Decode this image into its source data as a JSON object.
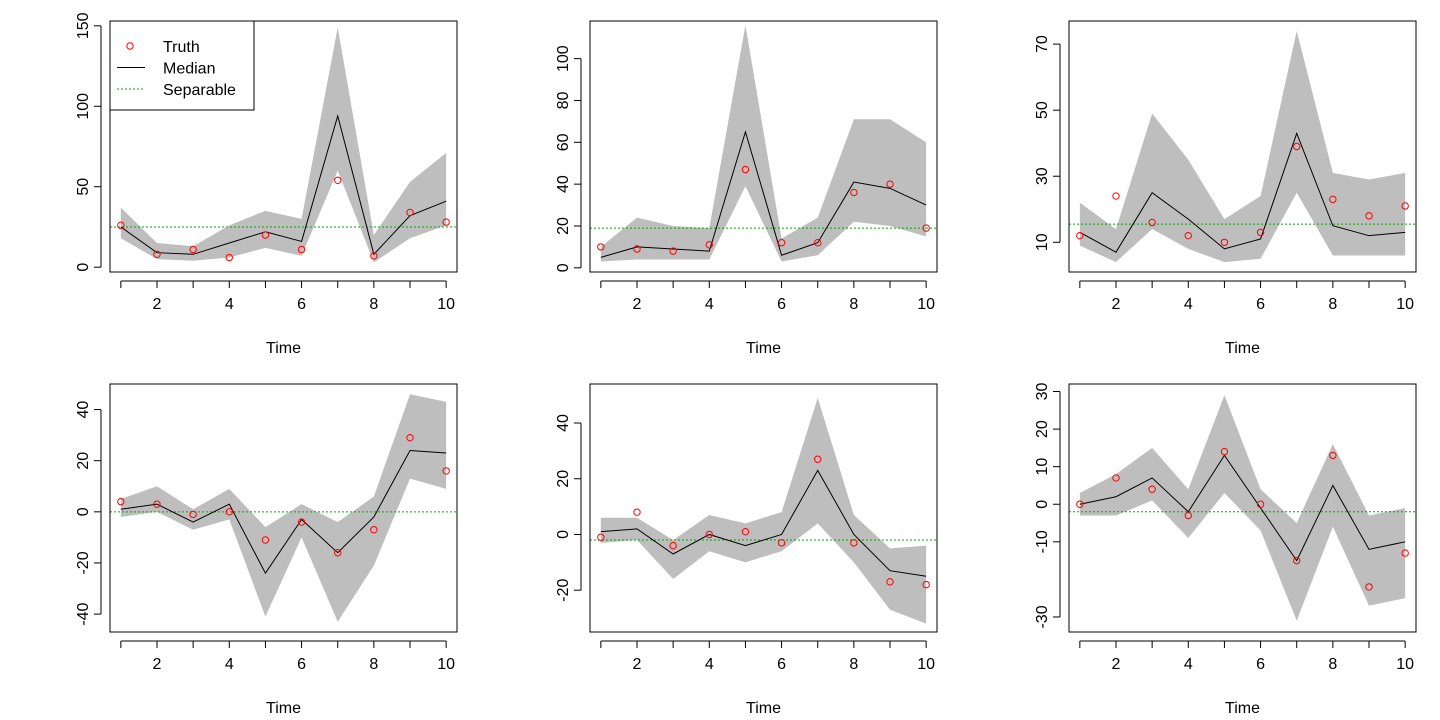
{
  "figure": {
    "layout": "2x3 panel grid",
    "colors": {
      "band": "#bebebe",
      "median": "#000000",
      "truth": "#ff0000",
      "separable": "#00aa00",
      "frame": "#000000"
    },
    "legend": {
      "items": [
        {
          "label": "Truth",
          "symbol": "open-circle",
          "color": "#ff0000"
        },
        {
          "label": "Median",
          "symbol": "solid-line",
          "color": "#000000"
        },
        {
          "label": "Separable",
          "symbol": "dotted-line",
          "color": "#00aa00"
        }
      ],
      "placement": "top-left of first panel"
    }
  },
  "chart_data": [
    {
      "type": "line",
      "xlabel": "Time",
      "ylabel": "",
      "xlim": [
        0.7,
        10.3
      ],
      "ylim": [
        -3,
        153
      ],
      "xticks": [
        2,
        4,
        6,
        8,
        10
      ],
      "yticks": [
        0,
        50,
        100,
        150
      ],
      "x": [
        1,
        2,
        3,
        4,
        5,
        6,
        7,
        8,
        9,
        10
      ],
      "series": [
        {
          "name": "Median",
          "values": [
            25,
            9,
            8,
            15,
            22,
            16,
            94,
            8,
            32,
            41
          ]
        },
        {
          "name": "Truth",
          "values": [
            26,
            8,
            11,
            6,
            20,
            11,
            54,
            7,
            34,
            28
          ]
        }
      ],
      "band": {
        "lower": [
          18,
          5,
          4,
          6,
          12,
          7,
          60,
          3,
          18,
          26
        ],
        "upper": [
          37,
          15,
          13,
          26,
          35,
          30,
          149,
          20,
          53,
          71
        ]
      },
      "separable": 25
    },
    {
      "type": "line",
      "xlabel": "Time",
      "ylabel": "",
      "xlim": [
        0.7,
        10.3
      ],
      "ylim": [
        -2,
        118
      ],
      "xticks": [
        2,
        4,
        6,
        8,
        10
      ],
      "yticks": [
        0,
        20,
        40,
        60,
        80,
        100
      ],
      "x": [
        1,
        2,
        3,
        4,
        5,
        6,
        7,
        8,
        9,
        10
      ],
      "series": [
        {
          "name": "Median",
          "values": [
            5,
            10,
            9,
            8,
            65,
            6,
            12,
            41,
            38,
            30
          ]
        },
        {
          "name": "Truth",
          "values": [
            10,
            9,
            8,
            11,
            47,
            12,
            12,
            36,
            40,
            19
          ]
        }
      ],
      "band": {
        "lower": [
          3,
          4,
          4,
          4,
          39,
          3,
          6,
          22,
          20,
          15
        ],
        "upper": [
          10,
          24,
          20,
          19,
          116,
          14,
          24,
          71,
          71,
          60
        ]
      },
      "separable": 19
    },
    {
      "type": "line",
      "xlabel": "Time",
      "ylabel": "",
      "xlim": [
        0.7,
        10.3
      ],
      "ylim": [
        1,
        77
      ],
      "xticks": [
        2,
        4,
        6,
        8,
        10
      ],
      "yticks": [
        10,
        30,
        50,
        70
      ],
      "x": [
        1,
        2,
        3,
        4,
        5,
        6,
        7,
        8,
        9,
        10
      ],
      "series": [
        {
          "name": "Median",
          "values": [
            13,
            7,
            25,
            17,
            8,
            11,
            43,
            15,
            12,
            13
          ]
        },
        {
          "name": "Truth",
          "values": [
            12,
            24,
            16,
            12,
            10,
            13,
            39,
            23,
            18,
            21
          ]
        }
      ],
      "band": {
        "lower": [
          9,
          4,
          14,
          8,
          4,
          5,
          25,
          6,
          6,
          6
        ],
        "upper": [
          22,
          14,
          49,
          35,
          17,
          24,
          74,
          31,
          29,
          31
        ]
      },
      "separable": 15.5
    },
    {
      "type": "line",
      "xlabel": "Time",
      "ylabel": "",
      "xlim": [
        0.7,
        10.3
      ],
      "ylim": [
        -47,
        50
      ],
      "xticks": [
        2,
        4,
        6,
        8,
        10
      ],
      "yticks": [
        -40,
        -20,
        0,
        20,
        40
      ],
      "x": [
        1,
        2,
        3,
        4,
        5,
        6,
        7,
        8,
        9,
        10
      ],
      "series": [
        {
          "name": "Median",
          "values": [
            1,
            3,
            -4,
            3,
            -24,
            -3,
            -16,
            -2,
            24,
            23
          ]
        },
        {
          "name": "Truth",
          "values": [
            4,
            3,
            -1,
            0,
            -11,
            -4,
            -16,
            -7,
            29,
            16
          ]
        }
      ],
      "band": {
        "lower": [
          -2,
          0,
          -7,
          -3,
          -41,
          -10,
          -43,
          -21,
          13,
          9
        ],
        "upper": [
          5,
          10,
          1,
          9,
          -6,
          3,
          -4,
          6,
          46,
          43
        ]
      },
      "separable": 0
    },
    {
      "type": "line",
      "xlabel": "Time",
      "ylabel": "",
      "xlim": [
        0.7,
        10.3
      ],
      "ylim": [
        -35,
        54
      ],
      "xticks": [
        2,
        4,
        6,
        8,
        10
      ],
      "yticks": [
        -20,
        0,
        20,
        40
      ],
      "x": [
        1,
        2,
        3,
        4,
        5,
        6,
        7,
        8,
        9,
        10
      ],
      "series": [
        {
          "name": "Median",
          "values": [
            1,
            2,
            -7,
            0,
            -4,
            0,
            23,
            0,
            -13,
            -15
          ]
        },
        {
          "name": "Truth",
          "values": [
            -1,
            8,
            -4,
            0,
            1,
            -3,
            27,
            -3,
            -17,
            -18
          ]
        }
      ],
      "band": {
        "lower": [
          -3,
          -2,
          -16,
          -6,
          -10,
          -6,
          4,
          -10,
          -27,
          -32
        ],
        "upper": [
          6,
          6,
          -2,
          7,
          4,
          8,
          49,
          7,
          -5,
          -4
        ]
      },
      "separable": -2
    },
    {
      "type": "line",
      "xlabel": "Time",
      "ylabel": "",
      "xlim": [
        0.7,
        10.3
      ],
      "ylim": [
        -34,
        32
      ],
      "xticks": [
        2,
        4,
        6,
        8,
        10
      ],
      "yticks": [
        -30,
        -10,
        0,
        10,
        20,
        30
      ],
      "x": [
        1,
        2,
        3,
        4,
        5,
        6,
        7,
        8,
        9,
        10
      ],
      "series": [
        {
          "name": "Median",
          "values": [
            0,
            2,
            7,
            -2,
            13,
            -1,
            -15,
            5,
            -12,
            -10
          ]
        },
        {
          "name": "Truth",
          "values": [
            0,
            7,
            4,
            -3,
            14,
            0,
            -15,
            13,
            -22,
            -13
          ]
        }
      ],
      "band": {
        "lower": [
          -3,
          -3,
          1,
          -9,
          3,
          -7,
          -31,
          -6,
          -27,
          -25
        ],
        "upper": [
          3,
          8,
          15,
          4,
          29,
          4,
          -5,
          16,
          -3,
          -1
        ]
      },
      "separable": -2
    }
  ]
}
